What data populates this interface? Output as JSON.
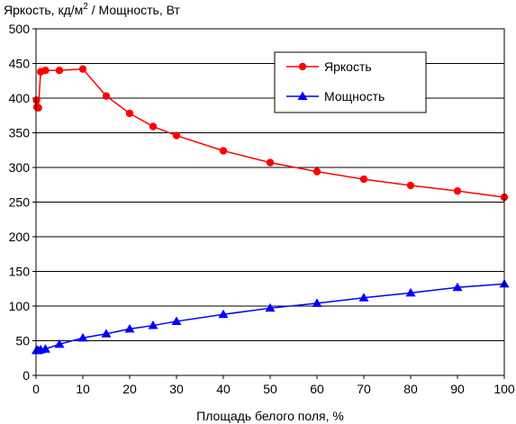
{
  "chart_data": {
    "type": "line",
    "title": "",
    "ylabel_main": "Яркость, кд/м",
    "ylabel_sup": "2",
    "ylabel_tail": " / Мощность, Вт",
    "xlabel": "Площадь белого поля, %",
    "xlim": [
      0,
      100
    ],
    "ylim": [
      0,
      500
    ],
    "x_ticks": [
      0,
      10,
      20,
      30,
      40,
      50,
      60,
      70,
      80,
      90,
      100
    ],
    "y_ticks": [
      0,
      50,
      100,
      150,
      200,
      250,
      300,
      350,
      400,
      450,
      500
    ],
    "grid": "horizontal",
    "legend_position": "top-right",
    "series": [
      {
        "name": "Яркость",
        "color": "#ff0000",
        "marker": "circle",
        "points": [
          [
            0.1,
            397
          ],
          [
            0.2,
            387
          ],
          [
            0.5,
            386
          ],
          [
            1,
            438
          ],
          [
            2,
            440
          ],
          [
            5,
            440
          ],
          [
            10,
            442
          ],
          [
            15,
            403
          ],
          [
            20,
            378
          ],
          [
            25,
            359
          ],
          [
            30,
            346
          ],
          [
            40,
            324
          ],
          [
            50,
            307
          ],
          [
            60,
            294
          ],
          [
            70,
            283
          ],
          [
            80,
            274
          ],
          [
            90,
            266
          ],
          [
            100,
            257
          ]
        ]
      },
      {
        "name": "Мощность",
        "color": "#0000ff",
        "marker": "triangle",
        "points": [
          [
            0.1,
            36
          ],
          [
            0.2,
            36
          ],
          [
            0.5,
            36
          ],
          [
            1,
            37
          ],
          [
            2,
            38
          ],
          [
            5,
            45
          ],
          [
            10,
            54
          ],
          [
            15,
            60
          ],
          [
            20,
            67
          ],
          [
            25,
            72
          ],
          [
            30,
            78
          ],
          [
            40,
            88
          ],
          [
            50,
            97
          ],
          [
            60,
            104
          ],
          [
            70,
            112
          ],
          [
            80,
            119
          ],
          [
            90,
            127
          ],
          [
            100,
            132
          ]
        ]
      }
    ]
  }
}
